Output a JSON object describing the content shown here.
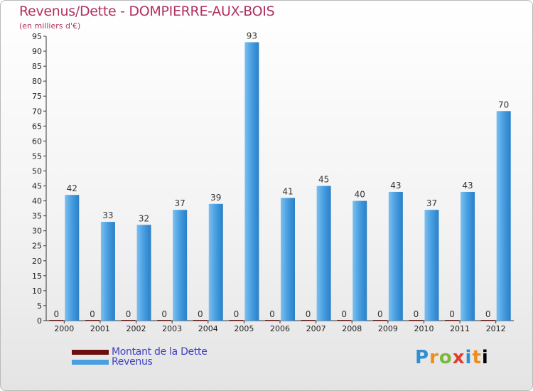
{
  "title": "Revenus/Dette - DOMPIERRE-AUX-BOIS",
  "subtitle": "(en milliers d'€)",
  "legend": [
    {
      "label": "Montant de la Dette",
      "color": "#6b0e0e"
    },
    {
      "label": "Revenus",
      "color": "#4a9fe0"
    }
  ],
  "logo": "Proxiti",
  "chart_data": {
    "type": "bar",
    "title": "Revenus/Dette - DOMPIERRE-AUX-BOIS",
    "ylabel": "(en milliers d'€)",
    "xlabel": "",
    "ylim": [
      0,
      95
    ],
    "ytick_step": 5,
    "grid": false,
    "legend_position": "bottom-left",
    "categories": [
      "2000",
      "2001",
      "2002",
      "2003",
      "2004",
      "2005",
      "2006",
      "2007",
      "2008",
      "2009",
      "2010",
      "2011",
      "2012"
    ],
    "series": [
      {
        "name": "Montant de la Dette",
        "color": "#6b0e0e",
        "values": [
          0,
          0,
          0,
          0,
          0,
          0,
          0,
          0,
          0,
          0,
          0,
          0,
          0
        ]
      },
      {
        "name": "Revenus",
        "color": "#4a9fe0",
        "values": [
          42,
          33,
          32,
          37,
          39,
          93,
          41,
          45,
          40,
          43,
          37,
          43,
          70
        ]
      }
    ]
  }
}
